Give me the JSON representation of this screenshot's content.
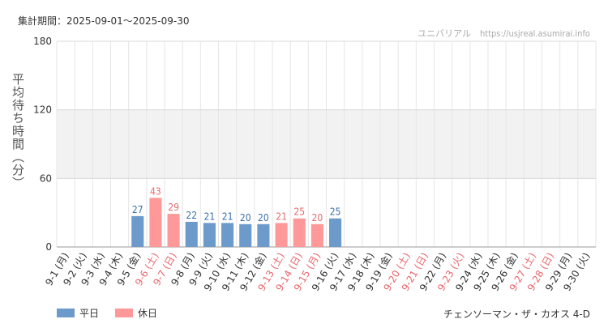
{
  "period": "集計期間：2025-09-01～2025-09-30",
  "source": "ユニバリアル　https://usjreal.asumirai.info",
  "ride": "チェンソーマン・ザ・カオス 4-D",
  "legend": {
    "weekday": "平日",
    "holiday": "休日"
  },
  "colors": {
    "weekday": "#6b9acb",
    "holiday": "#ff9999",
    "weekday_text": "#3a6fa8",
    "holiday_text": "#e8686c",
    "band": "#f2f2f2",
    "grid": "#e6e6e6"
  },
  "chart_data": {
    "type": "bar",
    "ylabel": "平均待ち時間（分）",
    "ylim": [
      0,
      180
    ],
    "yticks": [
      0,
      60,
      120,
      180
    ],
    "categories": [
      "9-1 (月)",
      "9-2 (火)",
      "9-3 (水)",
      "9-4 (木)",
      "9-5 (金)",
      "9-6 (土)",
      "9-7 (日)",
      "9-8 (月)",
      "9-9 (火)",
      "9-10 (水)",
      "9-11 (木)",
      "9-12 (金)",
      "9-13 (土)",
      "9-14 (日)",
      "9-15 (月)",
      "9-16 (火)",
      "9-17 (水)",
      "9-18 (木)",
      "9-19 (金)",
      "9-20 (土)",
      "9-21 (日)",
      "9-22 (月)",
      "9-23 (火)",
      "9-24 (水)",
      "9-25 (木)",
      "9-26 (金)",
      "9-27 (土)",
      "9-28 (日)",
      "9-29 (月)",
      "9-30 (火)"
    ],
    "values": [
      null,
      null,
      null,
      null,
      27,
      43,
      29,
      22,
      21,
      21,
      20,
      20,
      21,
      25,
      20,
      25,
      null,
      null,
      null,
      null,
      null,
      null,
      null,
      null,
      null,
      null,
      null,
      null,
      null,
      null
    ],
    "holiday": [
      false,
      false,
      false,
      false,
      false,
      true,
      true,
      false,
      false,
      false,
      false,
      false,
      true,
      true,
      true,
      false,
      false,
      false,
      false,
      true,
      true,
      false,
      true,
      false,
      false,
      false,
      true,
      true,
      false,
      false
    ]
  }
}
